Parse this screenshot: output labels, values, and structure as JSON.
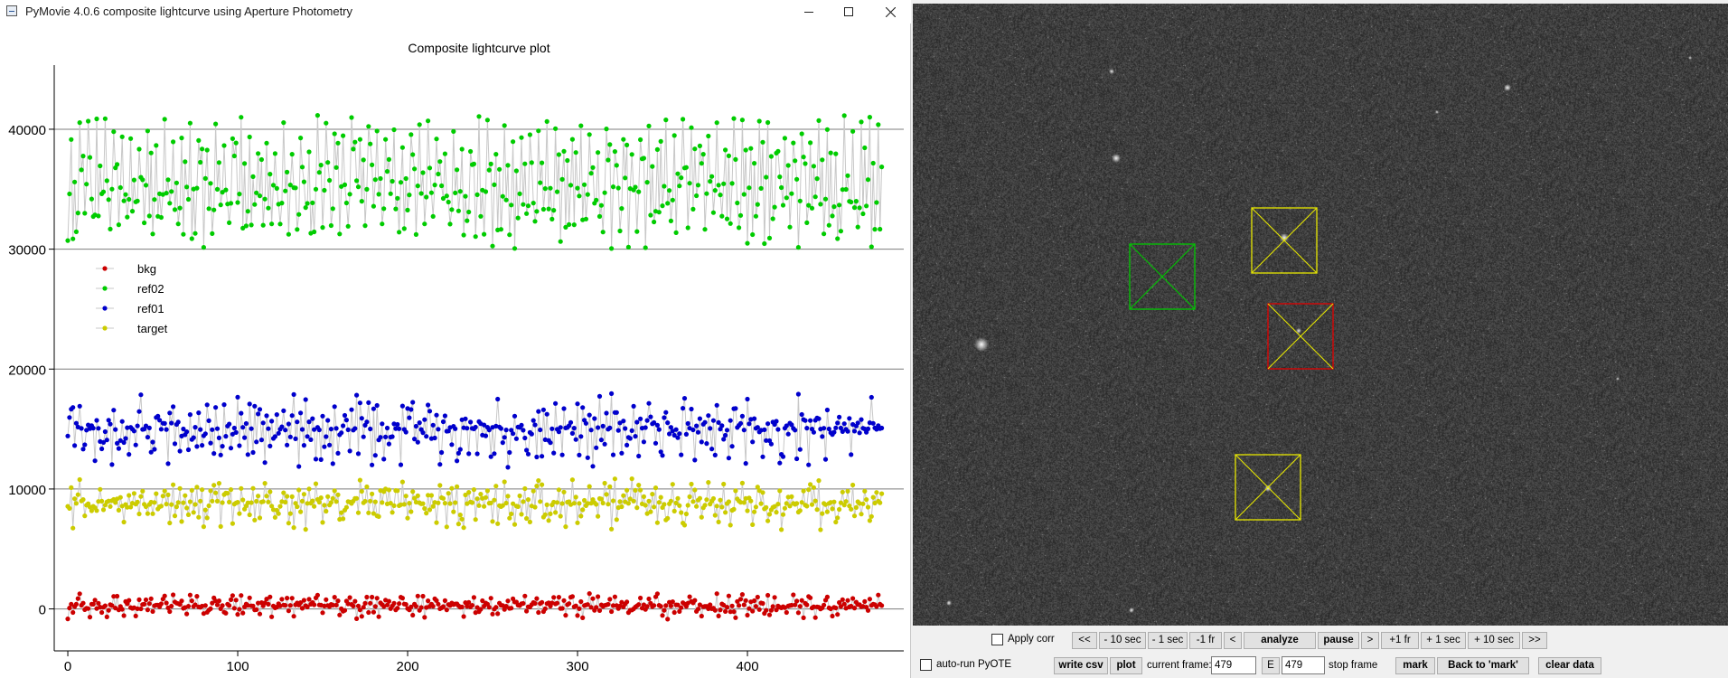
{
  "window": {
    "title": "PyMovie 4.0.6 composite lightcurve using Aperture Photometry",
    "minimize_icon": "minimize-icon",
    "maximize_icon": "maximize-icon",
    "close_icon": "close-icon"
  },
  "chart_data": {
    "type": "scatter",
    "title": "Composite lightcurve plot",
    "xlabel": "",
    "ylabel": "",
    "xlim": [
      -8,
      492
    ],
    "ylim": [
      -3500,
      45500
    ],
    "xticks": [
      0,
      100,
      200,
      300,
      400
    ],
    "yticks": [
      0,
      10000,
      20000,
      30000,
      40000
    ],
    "x_count": 480,
    "grid": "horizontal",
    "legend_position": "left",
    "series": [
      {
        "name": "bkg",
        "color": "#cc0000",
        "values": [
          300,
          -150,
          1300,
          -900,
          700,
          200,
          1100,
          -300,
          500,
          0
        ]
      },
      {
        "name": "ref02",
        "color": "#00cc00",
        "values": [
          36000,
          33500,
          41200,
          30000,
          38000,
          32800,
          35600,
          37900,
          31200,
          39000
        ]
      },
      {
        "name": "ref01",
        "color": "#0000cc",
        "values": [
          12700,
          16100,
          14300,
          18100,
          13600,
          15600,
          11800,
          17200,
          14900,
          15100
        ]
      },
      {
        "name": "target",
        "color": "#cccc00",
        "values": [
          9300,
          7800,
          11000,
          6600,
          9900,
          8400,
          10500,
          7100,
          9000,
          8700
        ]
      }
    ]
  },
  "apertures": [
    {
      "name": "green",
      "color": "#00c800"
    },
    {
      "name": "yellow-1",
      "color": "#e8e800"
    },
    {
      "name": "red",
      "color": "#e00000"
    },
    {
      "name": "yellow-2",
      "color": "#e8e800"
    }
  ],
  "controls": {
    "apply_corr": "Apply corr",
    "auto_run_pyote": "auto-run PyOTE",
    "nav_first": "<<",
    "back_10_sec": "- 10 sec",
    "back_1_sec": "- 1 sec",
    "back_1_fr": "-1 fr",
    "back": "<",
    "analyze": "analyze",
    "pause": "pause",
    "forward": ">",
    "fwd_1_fr": "+1 fr",
    "fwd_1_sec": "+ 1 sec",
    "fwd_10_sec": "+ 10 sec",
    "nav_last": ">>",
    "write_csv": "write csv",
    "plot": "plot",
    "current_frame_label": "current frame:",
    "current_frame_value": "479",
    "e_button": "E",
    "stop_frame_value": "479",
    "stop_frame_label": "stop frame",
    "mark": "mark",
    "back_to_mark": "Back to 'mark'",
    "clear_data": "clear data"
  }
}
